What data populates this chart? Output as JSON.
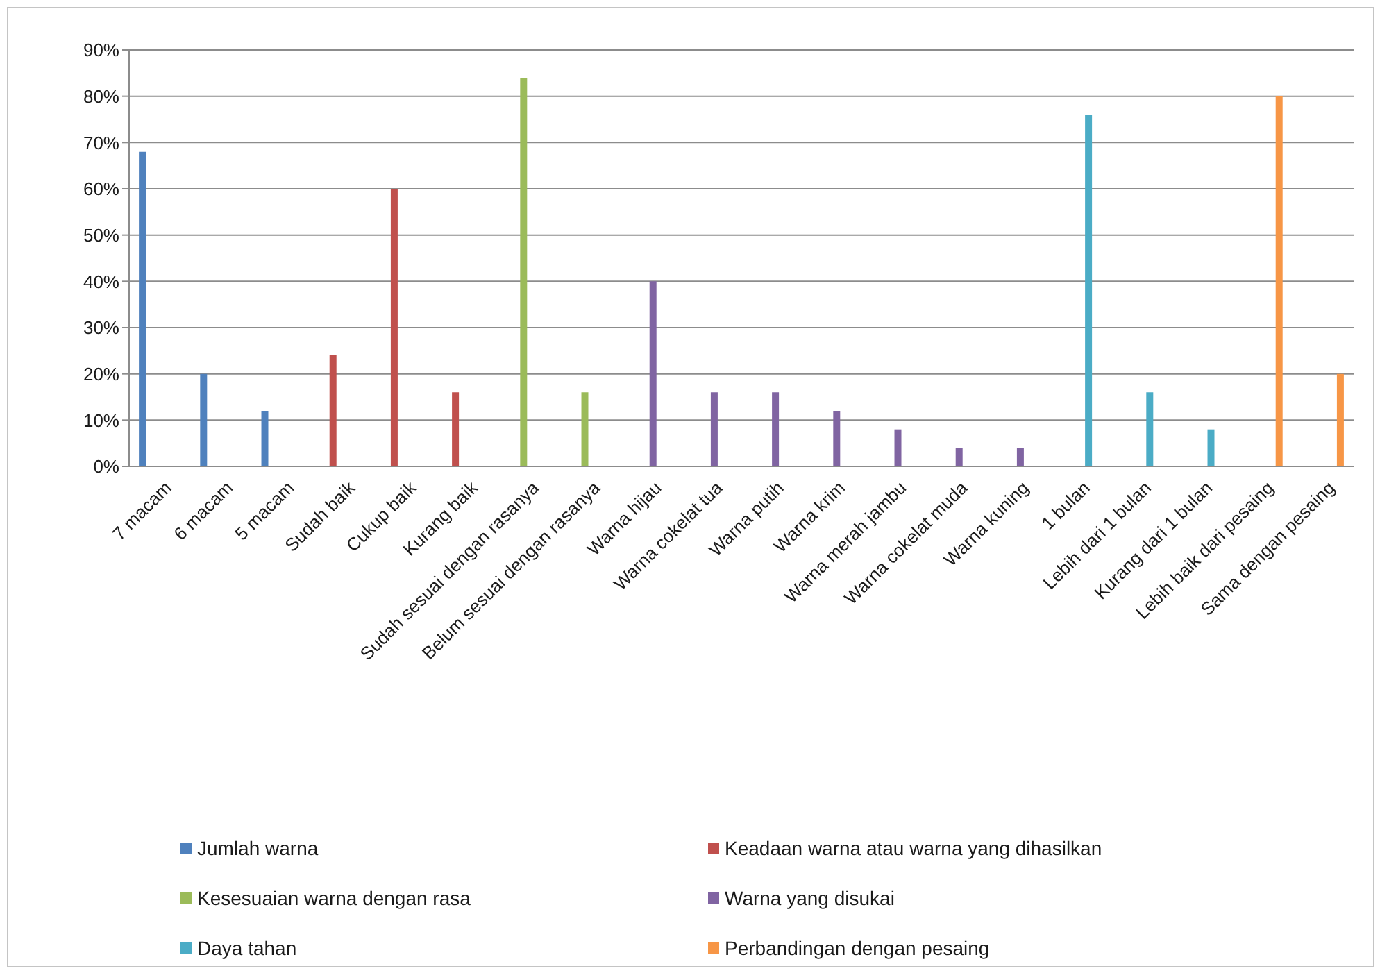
{
  "chart_data": {
    "type": "bar",
    "categories": [
      "7 macam",
      "6 macam",
      "5 macam",
      "Sudah baik",
      "Cukup baik",
      "Kurang baik",
      "Sudah sesuai dengan rasanya",
      "Belum sesuai dengan rasanya",
      "Warna hijau",
      "Warna cokelat tua",
      "Warna putih",
      "Warna krim",
      "Warna merah jambu",
      "Warna cokelat muda",
      "Warna kuning",
      "1 bulan",
      "Lebih dari 1 bulan",
      "Kurang dari 1 bulan",
      "Lebih baik dari pesaing",
      "Sama dengan pesaing"
    ],
    "series": [
      {
        "name": "Jumlah warna",
        "color": "#4f81bd",
        "values": [
          68,
          20,
          12,
          null,
          null,
          null,
          null,
          null,
          null,
          null,
          null,
          null,
          null,
          null,
          null,
          null,
          null,
          null,
          null,
          null
        ]
      },
      {
        "name": "Keadaan warna atau warna yang dihasilkan",
        "color": "#c0504d",
        "values": [
          null,
          null,
          null,
          24,
          60,
          16,
          null,
          null,
          null,
          null,
          null,
          null,
          null,
          null,
          null,
          null,
          null,
          null,
          null,
          null
        ]
      },
      {
        "name": "Kesesuaian warna dengan rasa",
        "color": "#9bbb59",
        "values": [
          null,
          null,
          null,
          null,
          null,
          null,
          84,
          16,
          null,
          null,
          null,
          null,
          null,
          null,
          null,
          null,
          null,
          null,
          null,
          null
        ]
      },
      {
        "name": "Warna yang disukai",
        "color": "#8064a2",
        "values": [
          null,
          null,
          null,
          null,
          null,
          null,
          null,
          null,
          40,
          16,
          16,
          12,
          8,
          4,
          4,
          null,
          null,
          null,
          null,
          null
        ]
      },
      {
        "name": "Daya tahan",
        "color": "#4bacc6",
        "values": [
          null,
          null,
          null,
          null,
          null,
          null,
          null,
          null,
          null,
          null,
          null,
          null,
          null,
          null,
          null,
          76,
          16,
          8,
          null,
          null
        ]
      },
      {
        "name": "Perbandingan dengan pesaing",
        "color": "#f79646",
        "values": [
          null,
          null,
          null,
          null,
          null,
          null,
          null,
          null,
          null,
          null,
          null,
          null,
          null,
          null,
          null,
          null,
          null,
          null,
          80,
          20
        ]
      }
    ],
    "ylim": [
      0,
      90
    ],
    "yticks": [
      {
        "value": 0,
        "label": "0%"
      },
      {
        "value": 10,
        "label": "10%"
      },
      {
        "value": 20,
        "label": "20%"
      },
      {
        "value": 30,
        "label": "30%"
      },
      {
        "value": 40,
        "label": "40%"
      },
      {
        "value": 50,
        "label": "50%"
      },
      {
        "value": 60,
        "label": "60%"
      },
      {
        "value": 70,
        "label": "70%"
      },
      {
        "value": 80,
        "label": "80%"
      },
      {
        "value": 90,
        "label": "90%"
      }
    ],
    "grid": "y",
    "legend": "bottom"
  }
}
